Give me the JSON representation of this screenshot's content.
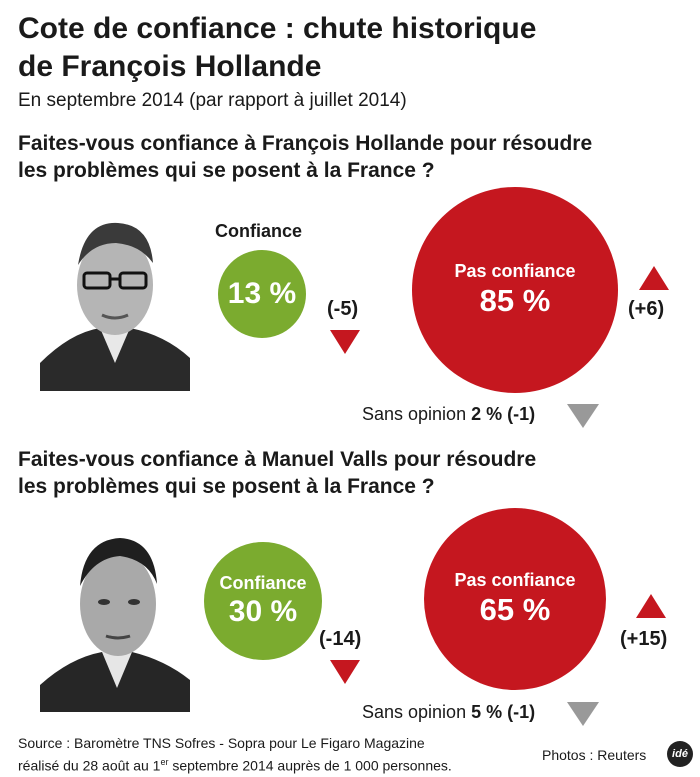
{
  "header": {
    "title_line1": "Cote de confiance : chute historique",
    "title_line2": "de François Hollande",
    "subtitle": "En septembre 2014 (par rapport à juillet 2014)"
  },
  "chart_data": [
    {
      "type": "bubble",
      "title": "Faites-vous confiance à François Hollande pour résoudre les problèmes qui se posent à la France ?",
      "question_line1": "Faites-vous confiance à François Hollande pour résoudre",
      "question_line2": "les problèmes qui se posent à la France ?",
      "categories": [
        "Confiance",
        "Pas confiance",
        "Sans opinion"
      ],
      "values": [
        13,
        85,
        2
      ],
      "value_labels": [
        "13 %",
        "85 %",
        "2 %"
      ],
      "changes": [
        -5,
        6,
        -1
      ],
      "change_labels": [
        "(-5)",
        "(+6)",
        "(-1)"
      ],
      "unit": "%"
    },
    {
      "type": "bubble",
      "title": "Faites-vous confiance à Manuel Valls pour résoudre les problèmes qui se posent à la France ?",
      "question_line1": "Faites-vous confiance à Manuel Valls pour résoudre",
      "question_line2": "les problèmes qui se posent à la France ?",
      "categories": [
        "Confiance",
        "Pas confiance",
        "Sans opinion"
      ],
      "values": [
        30,
        65,
        5
      ],
      "value_labels": [
        "30 %",
        "65 %",
        "5 %"
      ],
      "changes": [
        -14,
        15,
        -1
      ],
      "change_labels": [
        "(-14)",
        "(+15)",
        "(-1)"
      ],
      "unit": "%"
    }
  ],
  "footer": {
    "source_line1": "Source : Baromètre TNS Sofres - Sopra pour Le Figaro Magazine",
    "source_line2_a": "réalisé du 28 août au 1",
    "source_line2_sup": "er",
    "source_line2_b": " septembre 2014 auprès de 1 000 personnes.",
    "photos_credit": "Photos : Reuters",
    "logo_text": "idé"
  },
  "colors": {
    "green": "#7bab2f",
    "red": "#c5171f",
    "gray_arrow": "#999999",
    "text": "#1a1a1a"
  }
}
